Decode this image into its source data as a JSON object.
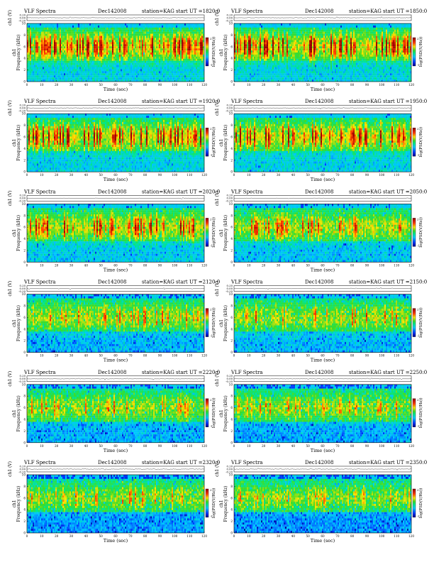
{
  "page": {
    "columns": 2,
    "rows": 6
  },
  "common": {
    "header_left": "VLF Spectra",
    "date": "Dec142008",
    "station": "station=KAG",
    "ut_prefix": "start  UT  =",
    "line_ylabel": "ch1 (V)",
    "spec_ylabel_line1": "ch1",
    "spec_ylabel_line2": "Frequency  (kHz)",
    "colorbar_label": "log(PSD(V/Hz))",
    "colorbar_tick_top": "2",
    "colorbar_tick_bottom": "-1",
    "xlabel": "Time  (sec)",
    "colors": {
      "bg_low": "#00c8ff",
      "bg_mid": "#00e060",
      "burst_mid": "#ffe000",
      "burst_high": "#ff2000",
      "burst_peak": "#b00000",
      "band_top": "#00d8ff"
    }
  },
  "chart_data": [
    {
      "type": "heatmap",
      "ut": "1820:0",
      "activity": 0.95,
      "blue_noise": 0.02,
      "x": {
        "range": [
          0,
          120
        ],
        "ticks": [
          0,
          10,
          20,
          30,
          40,
          50,
          60,
          70,
          80,
          90,
          100,
          110,
          120
        ]
      },
      "freq": {
        "range": [
          0,
          10
        ],
        "ticks": [
          0,
          2,
          4,
          6,
          8,
          10
        ]
      },
      "line": {
        "range": [
          -0.2,
          0.2
        ],
        "ticks": [
          "0.20",
          "0.00",
          "-0.20"
        ]
      }
    },
    {
      "type": "heatmap",
      "ut": "1850:0",
      "activity": 1.0,
      "blue_noise": 0.02,
      "x": {
        "range": [
          0,
          120
        ],
        "ticks": [
          0,
          10,
          20,
          30,
          40,
          50,
          60,
          70,
          80,
          90,
          100,
          110,
          120
        ]
      },
      "freq": {
        "range": [
          0,
          10
        ],
        "ticks": [
          0,
          2,
          4,
          6,
          8,
          10
        ]
      },
      "line": {
        "range": [
          -0.2,
          0.2
        ],
        "ticks": [
          "0.20",
          "0.00",
          "-0.20"
        ]
      }
    },
    {
      "type": "heatmap",
      "ut": "1920:0",
      "activity": 0.95,
      "blue_noise": 0.04,
      "x": {
        "range": [
          0,
          120
        ],
        "ticks": [
          0,
          10,
          20,
          30,
          40,
          50,
          60,
          70,
          80,
          90,
          100,
          110,
          120
        ]
      },
      "freq": {
        "range": [
          0,
          10
        ],
        "ticks": [
          0,
          2,
          4,
          6,
          8,
          10
        ]
      },
      "line": {
        "range": [
          -0.2,
          0.2
        ],
        "ticks": [
          "0.20",
          "0.00",
          "-0.20"
        ]
      }
    },
    {
      "type": "heatmap",
      "ut": "1950:0",
      "activity": 0.95,
      "blue_noise": 0.04,
      "x": {
        "range": [
          0,
          120
        ],
        "ticks": [
          0,
          10,
          20,
          30,
          40,
          50,
          60,
          70,
          80,
          90,
          100,
          110,
          120
        ]
      },
      "freq": {
        "range": [
          0,
          10
        ],
        "ticks": [
          0,
          2,
          4,
          6,
          8,
          10
        ]
      },
      "line": {
        "range": [
          -0.2,
          0.2
        ],
        "ticks": [
          "0.20",
          "0.00",
          "-0.20"
        ]
      }
    },
    {
      "type": "heatmap",
      "ut": "2020:0",
      "activity": 0.85,
      "blue_noise": 0.08,
      "x": {
        "range": [
          0,
          120
        ],
        "ticks": [
          0,
          10,
          20,
          30,
          40,
          50,
          60,
          70,
          80,
          90,
          100,
          110,
          120
        ]
      },
      "freq": {
        "range": [
          0,
          10
        ],
        "ticks": [
          0,
          2,
          4,
          6,
          8,
          10
        ]
      },
      "line": {
        "range": [
          -0.2,
          0.2
        ],
        "ticks": [
          "0.20",
          "0.00",
          "-0.20"
        ]
      }
    },
    {
      "type": "heatmap",
      "ut": "2050:0",
      "activity": 0.7,
      "blue_noise": 0.12,
      "x": {
        "range": [
          0,
          120
        ],
        "ticks": [
          0,
          10,
          20,
          30,
          40,
          50,
          60,
          70,
          80,
          90,
          100,
          110,
          120
        ]
      },
      "freq": {
        "range": [
          0,
          10
        ],
        "ticks": [
          0,
          2,
          4,
          6,
          8,
          10
        ]
      },
      "line": {
        "range": [
          -0.2,
          0.2
        ],
        "ticks": [
          "0.20",
          "0.00",
          "-0.20"
        ]
      }
    },
    {
      "type": "heatmap",
      "ut": "2120:0",
      "activity": 0.6,
      "blue_noise": 0.18,
      "x": {
        "range": [
          0,
          120
        ],
        "ticks": [
          0,
          10,
          20,
          30,
          40,
          50,
          60,
          70,
          80,
          90,
          100,
          110,
          120
        ]
      },
      "freq": {
        "range": [
          0,
          10
        ],
        "ticks": [
          0,
          2,
          4,
          6,
          8,
          10
        ]
      },
      "line": {
        "range": [
          -0.2,
          0.2
        ],
        "ticks": [
          "0.20",
          "0.00",
          "-0.20"
        ]
      }
    },
    {
      "type": "heatmap",
      "ut": "2150:0",
      "activity": 0.55,
      "blue_noise": 0.18,
      "x": {
        "range": [
          0,
          120
        ],
        "ticks": [
          0,
          10,
          20,
          30,
          40,
          50,
          60,
          70,
          80,
          90,
          100,
          110,
          120
        ]
      },
      "freq": {
        "range": [
          0,
          10
        ],
        "ticks": [
          0,
          2,
          4,
          6,
          8,
          10
        ]
      },
      "line": {
        "range": [
          -0.2,
          0.2
        ],
        "ticks": [
          "0.20",
          "0.00",
          "-0.20"
        ]
      }
    },
    {
      "type": "heatmap",
      "ut": "2220:0",
      "activity": 0.5,
      "blue_noise": 0.22,
      "x": {
        "range": [
          0,
          120
        ],
        "ticks": [
          0,
          10,
          20,
          30,
          40,
          50,
          60,
          70,
          80,
          90,
          100,
          110,
          120
        ]
      },
      "freq": {
        "range": [
          0,
          10
        ],
        "ticks": [
          0,
          2,
          4,
          6,
          8,
          10
        ]
      },
      "line": {
        "range": [
          -0.2,
          0.2
        ],
        "ticks": [
          "0.20",
          "0.00",
          "-0.20"
        ]
      }
    },
    {
      "type": "heatmap",
      "ut": "2250:0",
      "activity": 0.45,
      "blue_noise": 0.25,
      "x": {
        "range": [
          0,
          120
        ],
        "ticks": [
          0,
          10,
          20,
          30,
          40,
          50,
          60,
          70,
          80,
          90,
          100,
          110,
          120
        ]
      },
      "freq": {
        "range": [
          0,
          10
        ],
        "ticks": [
          0,
          2,
          4,
          6,
          8,
          10
        ]
      },
      "line": {
        "range": [
          -0.2,
          0.2
        ],
        "ticks": [
          "0.20",
          "0.00",
          "-0.20"
        ]
      }
    },
    {
      "type": "heatmap",
      "ut": "2320:0",
      "activity": 0.45,
      "blue_noise": 0.3,
      "x": {
        "range": [
          0,
          120
        ],
        "ticks": [
          0,
          10,
          20,
          30,
          40,
          50,
          60,
          70,
          80,
          90,
          100,
          110,
          120
        ]
      },
      "freq": {
        "range": [
          0,
          10
        ],
        "ticks": [
          0,
          2,
          4,
          6,
          8,
          10
        ]
      },
      "line": {
        "range": [
          -0.2,
          0.2
        ],
        "ticks": [
          "0.20",
          "0.00",
          "-0.20"
        ]
      }
    },
    {
      "type": "heatmap",
      "ut": "2350:0",
      "activity": 0.4,
      "blue_noise": 0.32,
      "x": {
        "range": [
          0,
          120
        ],
        "ticks": [
          0,
          10,
          20,
          30,
          40,
          50,
          60,
          70,
          80,
          90,
          100,
          110,
          120
        ]
      },
      "freq": {
        "range": [
          0,
          10
        ],
        "ticks": [
          0,
          2,
          4,
          6,
          8,
          10
        ]
      },
      "line": {
        "range": [
          -0.2,
          0.2
        ],
        "ticks": [
          "0.20",
          "0.00",
          "-0.20"
        ]
      }
    }
  ]
}
